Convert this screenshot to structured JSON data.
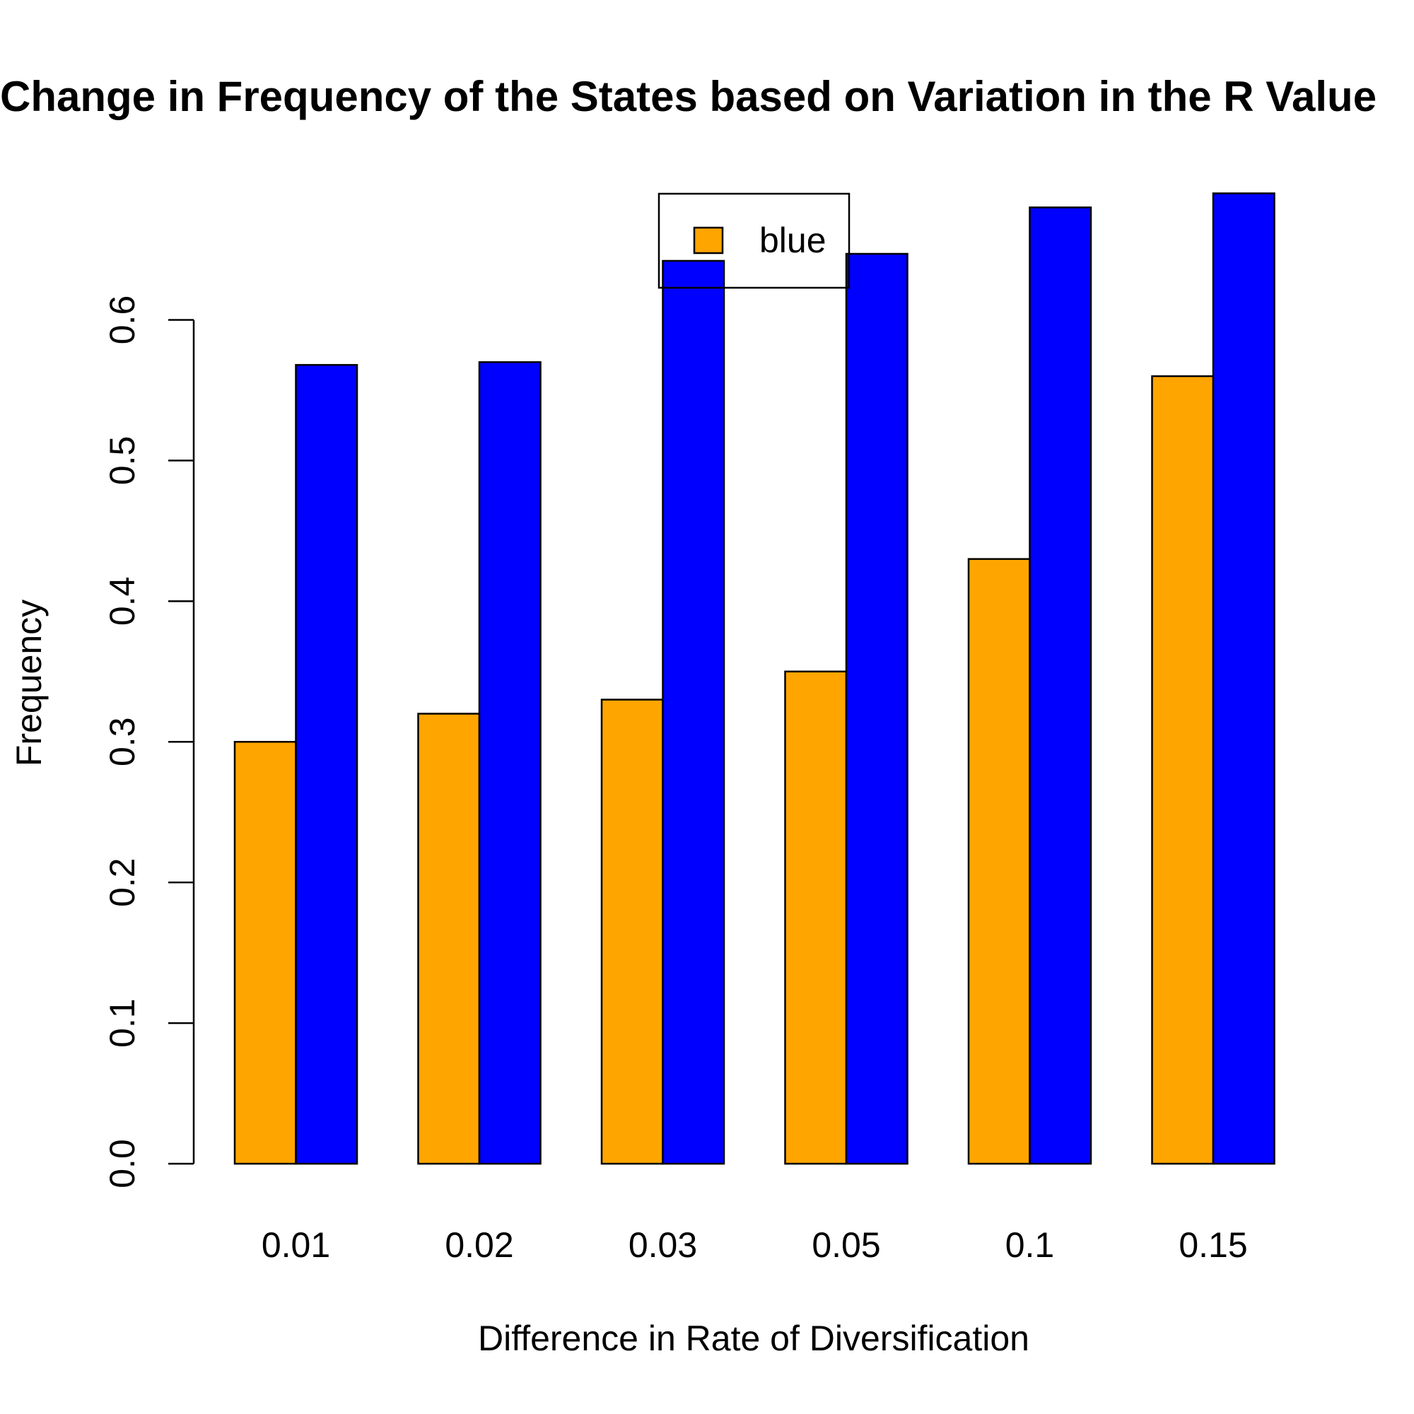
{
  "chart_data": {
    "type": "bar",
    "title": "Change in Frequency of the States based on Variation in the R Value",
    "xlabel": "Difference in Rate of Diversification",
    "ylabel": "Frequency",
    "categories": [
      "0.01",
      "0.02",
      "0.03",
      "0.05",
      "0.1",
      "0.15"
    ],
    "series": [
      {
        "color": "#FFA500",
        "values": [
          0.3,
          0.32,
          0.33,
          0.35,
          0.43,
          0.56
        ]
      },
      {
        "color": "#0000FF",
        "values": [
          0.568,
          0.57,
          0.642,
          0.647,
          0.68,
          0.69
        ]
      }
    ],
    "ylim": [
      0,
      0.69
    ],
    "yticks": [
      "0.0",
      "0.1",
      "0.2",
      "0.3",
      "0.4",
      "0.5",
      "0.6"
    ],
    "grid": false,
    "legend": {
      "position": "top-center",
      "entries": [
        {
          "label": "blue",
          "color": "#FFA500"
        }
      ]
    }
  }
}
